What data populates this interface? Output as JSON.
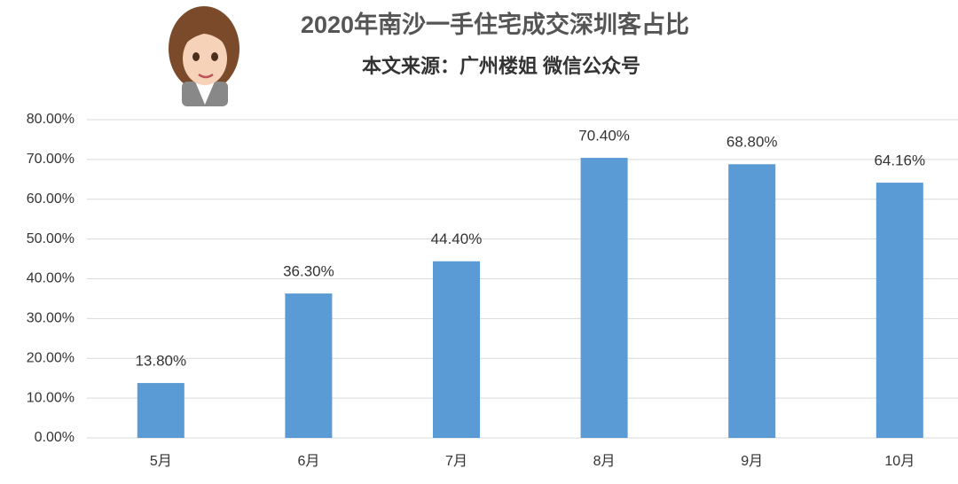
{
  "chart_data": {
    "type": "bar",
    "title": "2020年南沙一手住宅成交深圳客占比",
    "subtitle": "本文来源：广州楼姐 微信公众号",
    "categories": [
      "5月",
      "6月",
      "7月",
      "8月",
      "9月",
      "10月"
    ],
    "values": [
      13.8,
      36.3,
      44.4,
      70.4,
      68.8,
      64.16
    ],
    "value_labels": [
      "13.80%",
      "36.30%",
      "44.40%",
      "70.40%",
      "68.80%",
      "64.16%"
    ],
    "color": "#5b9bd5",
    "ylim": [
      0,
      80
    ],
    "yticks": [
      {
        "value": 0,
        "label": "0.00%"
      },
      {
        "value": 10,
        "label": "10.00%"
      },
      {
        "value": 20,
        "label": "20.00%"
      },
      {
        "value": 30,
        "label": "30.00%"
      },
      {
        "value": 40,
        "label": "40.00%"
      },
      {
        "value": 50,
        "label": "50.00%"
      },
      {
        "value": 60,
        "label": "60.00%"
      },
      {
        "value": 70,
        "label": "70.00%"
      },
      {
        "value": 80,
        "label": "80.00%"
      }
    ],
    "grid": true
  }
}
